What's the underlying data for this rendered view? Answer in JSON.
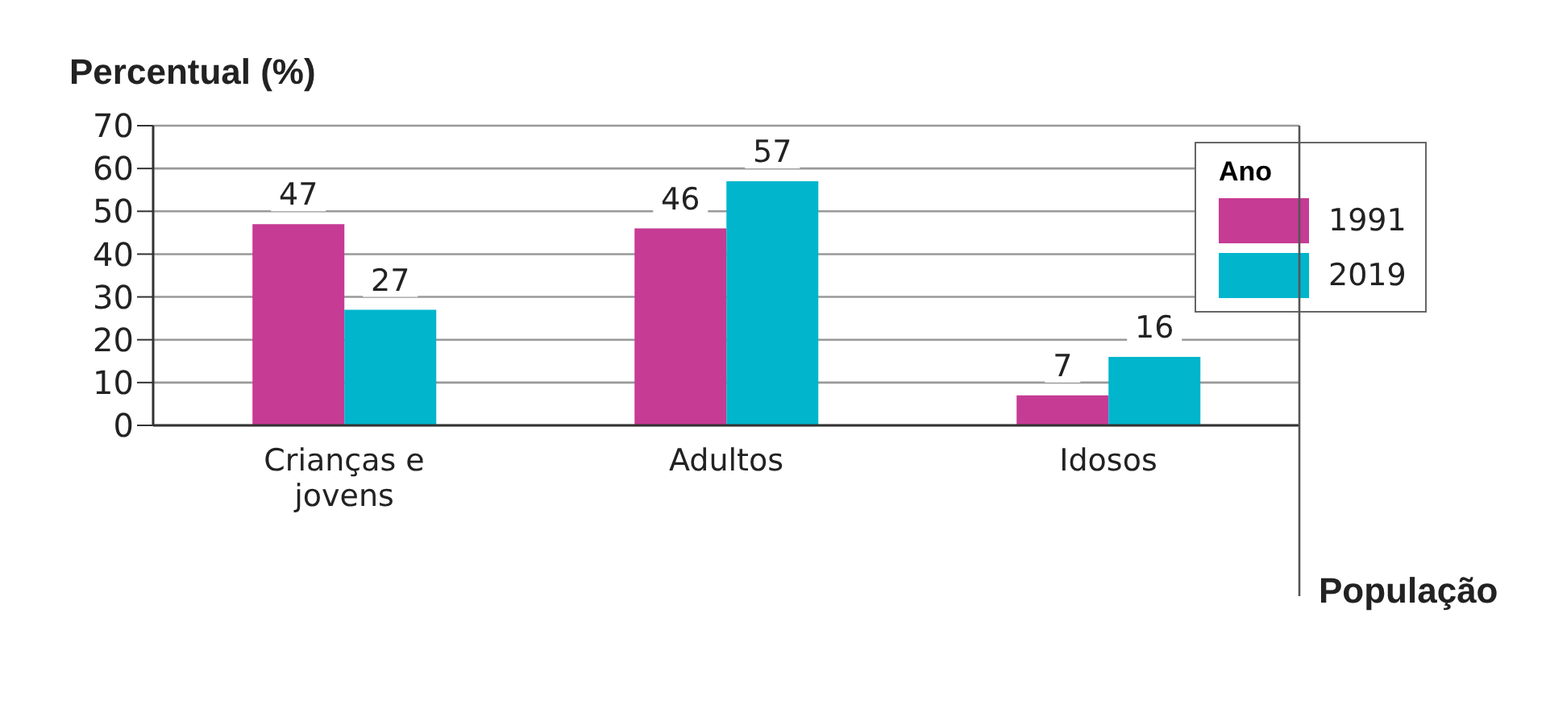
{
  "chart_data": {
    "type": "bar",
    "ylabel": "Percentual (%)",
    "xlabel": "População",
    "legend_title": "Ano",
    "categories": [
      "Crianças e jovens",
      "Adultos",
      "Idosos"
    ],
    "series": [
      {
        "name": "1991",
        "color": "#c63b94",
        "values": [
          47,
          46,
          7
        ]
      },
      {
        "name": "2019",
        "color": "#00b5cc",
        "values": [
          27,
          57,
          16
        ]
      }
    ],
    "ylim": [
      0,
      70
    ],
    "yticks": [
      0,
      10,
      20,
      30,
      40,
      50,
      60,
      70
    ],
    "grid": "y",
    "legend": "top right",
    "data_labels": true
  }
}
